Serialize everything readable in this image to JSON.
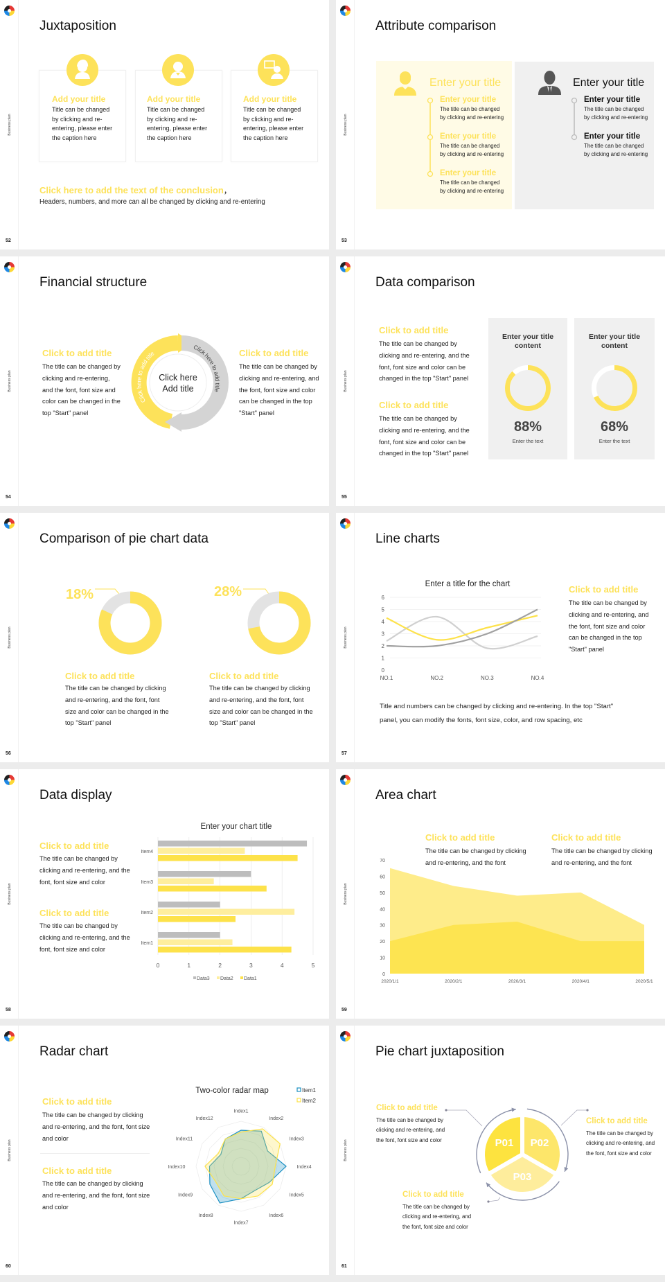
{
  "side_label": "Business plan",
  "colors": {
    "yellow": "#fde25a",
    "light_yellow": "#feee9e",
    "pale_yellow": "#fffbe6",
    "gray": "#bdbdbd",
    "dark_gray": "#a0a0a0",
    "panel_gray": "#f0f0f0",
    "blue": "#1a8fc2",
    "ring": "#8a90a8"
  },
  "slides": [
    {
      "page": "52",
      "title": "Juxtaposition",
      "cards": [
        {
          "icon": "female-user-icon",
          "title": "Add your title",
          "body": "Title can be changed\nby clicking and re-\nentering, please enter\nthe caption here"
        },
        {
          "icon": "male-user-icon",
          "title": "Add your title",
          "body": "Title can be changed\nby clicking and re-\nentering, please enter\nthe caption here"
        },
        {
          "icon": "presenter-icon",
          "title": "Add your title",
          "body": "Title can be changed\nby clicking and re-\nentering, please enter\nthe caption here"
        }
      ],
      "conclusion_title": "Click here to add the text of the conclusion",
      "conclusion_comma": "，",
      "conclusion_body": "Headers, numbers, and more can all be changed by clicking and re-entering"
    },
    {
      "page": "53",
      "title": "Attribute comparison",
      "left": {
        "icon": "female-user-icon",
        "heading": "Enter your title",
        "items": [
          {
            "title": "Enter your title",
            "body": "The title can be changed\nby clicking and re-entering"
          },
          {
            "title": "Enter your title",
            "body": "The title can be changed\nby clicking and re-entering"
          },
          {
            "title": "Enter your title",
            "body": "The title can be changed\nby clicking and re-entering"
          }
        ]
      },
      "right": {
        "icon": "businessman-icon",
        "heading": "Enter your title",
        "items": [
          {
            "title": "Enter your title",
            "body": "The title can be changed\nby clicking and re-entering"
          },
          {
            "title": "Enter your title",
            "body": "The title can be changed\nby clicking and re-entering"
          }
        ]
      }
    },
    {
      "page": "54",
      "title": "Financial structure",
      "left": {
        "title": "Click to add title",
        "body": "The title can be changed by\nclicking and re-entering,\nand the font, font size and\ncolor can be changed in the\ntop \"Start\" panel"
      },
      "right": {
        "title": "Click to add title",
        "body": "The title can be changed by\nclicking and re-entering, and\nthe font, font size and color\ncan be changed in the top\n\"Start\" panel"
      },
      "ring": {
        "center_line1": "Click here",
        "center_line2": "Add title",
        "arc_left": "Click here to add title",
        "arc_right": "Click here to add title"
      }
    },
    {
      "page": "55",
      "title": "Data comparison",
      "blocks": [
        {
          "title": "Click to add title",
          "body": "The title can be changed by\nclicking and re-entering, and the\nfont, font size and color can be\nchanged in the top \"Start\" panel"
        },
        {
          "title": "Click to add title",
          "body": "The title can be changed by\nclicking and re-entering, and the\nfont, font size and color can be\nchanged in the top \"Start\" panel"
        }
      ],
      "panels": [
        {
          "title": "Enter your title\ncontent",
          "value": "88%",
          "percent": 88,
          "caption": "Enter the text"
        },
        {
          "title": "Enter your title\ncontent",
          "value": "68%",
          "percent": 68,
          "caption": "Enter the text"
        }
      ]
    },
    {
      "page": "56",
      "title": "Comparison of pie chart data",
      "donuts": [
        {
          "label": "18%",
          "percent": 18,
          "title": "Click to add title",
          "body": "The title can be changed by clicking\nand re-entering, and the font, font\nsize and color can be changed in the\ntop \"Start\" panel"
        },
        {
          "label": "28%",
          "percent": 28,
          "title": "Click to add title",
          "body": "The title can be changed by clicking\nand re-entering, and the font, font\nsize and color can be changed in the\ntop \"Start\" panel"
        }
      ]
    },
    {
      "page": "57",
      "title": "Line charts",
      "side": {
        "title": "Click to add title",
        "body": "The title can be changed by\nclicking and re-entering, and\nthe font, font size and color\ncan be changed in the top\n\"Start\" panel"
      },
      "footer": "Title and numbers can be changed by clicking and re-entering. In the top \"Start\"\npanel, you can modify the fonts, font size, color, and row spacing, etc"
    },
    {
      "page": "58",
      "title": "Data display",
      "blocks": [
        {
          "title": "Click to add title",
          "body": "The title can be changed by\nclicking and re-entering, and the\nfont, font size and color"
        },
        {
          "title": "Click to add title",
          "body": "The title can be changed by\nclicking and re-entering, and the\nfont, font size and color"
        }
      ]
    },
    {
      "page": "59",
      "title": "Area chart",
      "blocks": [
        {
          "title": "Click to add title",
          "body": "The title can be changed by clicking\nand re-entering, and the font"
        },
        {
          "title": "Click to add title",
          "body": "The title can be changed by clicking\nand re-entering, and the font"
        }
      ]
    },
    {
      "page": "60",
      "title": "Radar chart",
      "blocks": [
        {
          "title": "Click to add title",
          "body": "The title can be changed by clicking\nand re-entering, and the font, font size\nand color"
        },
        {
          "title": "Click to add title",
          "body": "The title can be changed by clicking\nand re-entering, and the font, font size\nand color"
        }
      ]
    },
    {
      "page": "61",
      "title": "Pie chart juxtaposition",
      "segments": [
        "P01",
        "P02",
        "P03"
      ],
      "blocks": [
        {
          "title": "Click to add title",
          "body": "The title can be changed by\nclicking and re-entering, and\nthe font, font size and color"
        },
        {
          "title": "Click to add title",
          "body": "The title can be changed by\nclicking and re-entering, and\nthe font, font size and color"
        },
        {
          "title": "Click to add title",
          "body": "The title can be changed by\nclicking and re-entering, and\nthe font, font size and color"
        }
      ]
    }
  ],
  "chart_data": [
    {
      "type": "line",
      "title": "Enter a title for the chart",
      "categories": [
        "NO.1",
        "NO.2",
        "NO.3",
        "NO.4"
      ],
      "ylim": [
        0,
        6
      ],
      "yticks": [
        0,
        1,
        2,
        3,
        4,
        5,
        6
      ],
      "grid": true,
      "smooth": true,
      "series": [
        {
          "values": [
            2.4,
            4.4,
            1.8,
            2.8
          ],
          "color": "#d0d0d0"
        },
        {
          "values": [
            4.3,
            2.5,
            3.5,
            4.5
          ],
          "color": "#fde24a"
        },
        {
          "values": [
            2.0,
            2.0,
            3.0,
            5.0
          ],
          "color": "#a0a0a0"
        }
      ]
    },
    {
      "type": "bar",
      "orientation": "horizontal",
      "title": "Enter your chart title",
      "categories": [
        "Item1",
        "Item2",
        "Item3",
        "Item4"
      ],
      "xlim": [
        0,
        5
      ],
      "xticks": [
        0,
        1,
        2,
        3,
        4,
        5
      ],
      "grid": true,
      "legend": "bottom",
      "series": [
        {
          "name": "Data1",
          "values": [
            4.3,
            2.5,
            3.5,
            4.5
          ],
          "color": "#fde24a"
        },
        {
          "name": "Data2",
          "values": [
            2.4,
            4.4,
            1.8,
            2.8
          ],
          "color": "#feee9e"
        },
        {
          "name": "Data3",
          "values": [
            2.0,
            2.0,
            3.0,
            4.8
          ],
          "color": "#bdbdbd"
        }
      ]
    },
    {
      "type": "area",
      "categories": [
        "2020/1/1",
        "2020/2/1",
        "2020/3/1",
        "2020/4/1",
        "2020/5/1"
      ],
      "ylim": [
        0,
        70
      ],
      "yticks": [
        0,
        10,
        20,
        30,
        40,
        50,
        60,
        70
      ],
      "series": [
        {
          "values": [
            65,
            54,
            48,
            50,
            30
          ],
          "color": "#feec8a"
        },
        {
          "values": [
            20,
            30,
            32,
            20,
            20
          ],
          "color": "#fde451"
        }
      ]
    },
    {
      "type": "radar",
      "title": "Two-color radar map",
      "rmax": 5,
      "legend": "top-right",
      "categories": [
        "Index1",
        "Index2",
        "Index3",
        "Index4",
        "Index5",
        "Index6",
        "Index7",
        "Index8",
        "Index9",
        "Index10",
        "Index11",
        "Index12"
      ],
      "series": [
        {
          "name": "Item1",
          "values": [
            4.0,
            4.5,
            3.4,
            5.0,
            3.6,
            3.1,
            3.6,
            4.7,
            4.0,
            3.5,
            2.6,
            3.5
          ],
          "color": "#1a8fc2"
        },
        {
          "name": "Item2",
          "values": [
            3.8,
            4.8,
            5.0,
            3.8,
            4.0,
            3.8,
            3.6,
            3.8,
            3.3,
            4.0,
            2.9,
            3.5
          ],
          "color": "#fde24a"
        }
      ]
    }
  ]
}
